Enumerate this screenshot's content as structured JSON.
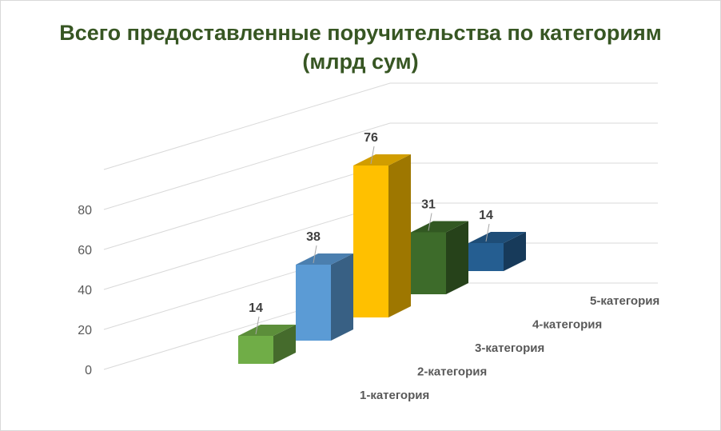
{
  "chart_data": {
    "type": "bar",
    "title": "Всего предоставленные поручительства по категориям",
    "subtitle": "(млрд сум)",
    "categories": [
      "1-категория",
      "2-категория",
      "3-категория",
      "4-категория",
      "5-категория"
    ],
    "values": [
      14,
      38,
      76,
      31,
      14
    ],
    "yticks": [
      0,
      20,
      40,
      60,
      80
    ],
    "ylim": [
      0,
      100
    ],
    "grid": true,
    "legend": "none",
    "data_labels": true,
    "colors": [
      "#70ad47",
      "#5b9bd5",
      "#ffc000",
      "#3d6b2a",
      "#255e91"
    ]
  }
}
